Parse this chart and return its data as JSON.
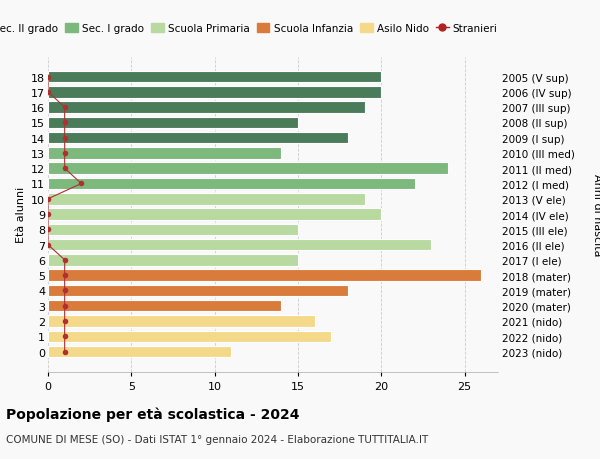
{
  "ages": [
    18,
    17,
    16,
    15,
    14,
    13,
    12,
    11,
    10,
    9,
    8,
    7,
    6,
    5,
    4,
    3,
    2,
    1,
    0
  ],
  "years": [
    "2005 (V sup)",
    "2006 (IV sup)",
    "2007 (III sup)",
    "2008 (II sup)",
    "2009 (I sup)",
    "2010 (III med)",
    "2011 (II med)",
    "2012 (I med)",
    "2013 (V ele)",
    "2014 (IV ele)",
    "2015 (III ele)",
    "2016 (II ele)",
    "2017 (I ele)",
    "2018 (mater)",
    "2019 (mater)",
    "2020 (mater)",
    "2021 (nido)",
    "2022 (nido)",
    "2023 (nido)"
  ],
  "values": [
    20,
    20,
    19,
    15,
    18,
    14,
    24,
    22,
    19,
    20,
    15,
    23,
    15,
    26,
    18,
    14,
    16,
    17,
    11
  ],
  "stranieri": [
    0,
    0,
    1,
    1,
    1,
    1,
    1,
    2,
    0,
    0,
    0,
    0,
    1,
    1,
    1,
    1,
    1,
    1,
    1
  ],
  "bar_colors": [
    "#4a7c59",
    "#4a7c59",
    "#4a7c59",
    "#4a7c59",
    "#4a7c59",
    "#7db87d",
    "#7db87d",
    "#7db87d",
    "#b8d9a0",
    "#b8d9a0",
    "#b8d9a0",
    "#b8d9a0",
    "#b8d9a0",
    "#d97b3a",
    "#d97b3a",
    "#d97b3a",
    "#f5d98b",
    "#f5d98b",
    "#f5d98b"
  ],
  "legend_colors": {
    "Sec. II grado": "#4a7c59",
    "Sec. I grado": "#7db87d",
    "Scuola Primaria": "#b8d9a0",
    "Scuola Infanzia": "#d97b3a",
    "Asilo Nido": "#f5d98b",
    "Stranieri": "#b22222"
  },
  "title": "Popolazione per età scolastica - 2024",
  "subtitle": "COMUNE DI MESE (SO) - Dati ISTAT 1° gennaio 2024 - Elaborazione TUTTITALIA.IT",
  "ylabel_left": "Età alunni",
  "ylabel_right": "Anni di nascita",
  "xlim": [
    0,
    27
  ],
  "xticks": [
    0,
    5,
    10,
    15,
    20,
    25
  ],
  "bg_color": "#f9f9f9"
}
